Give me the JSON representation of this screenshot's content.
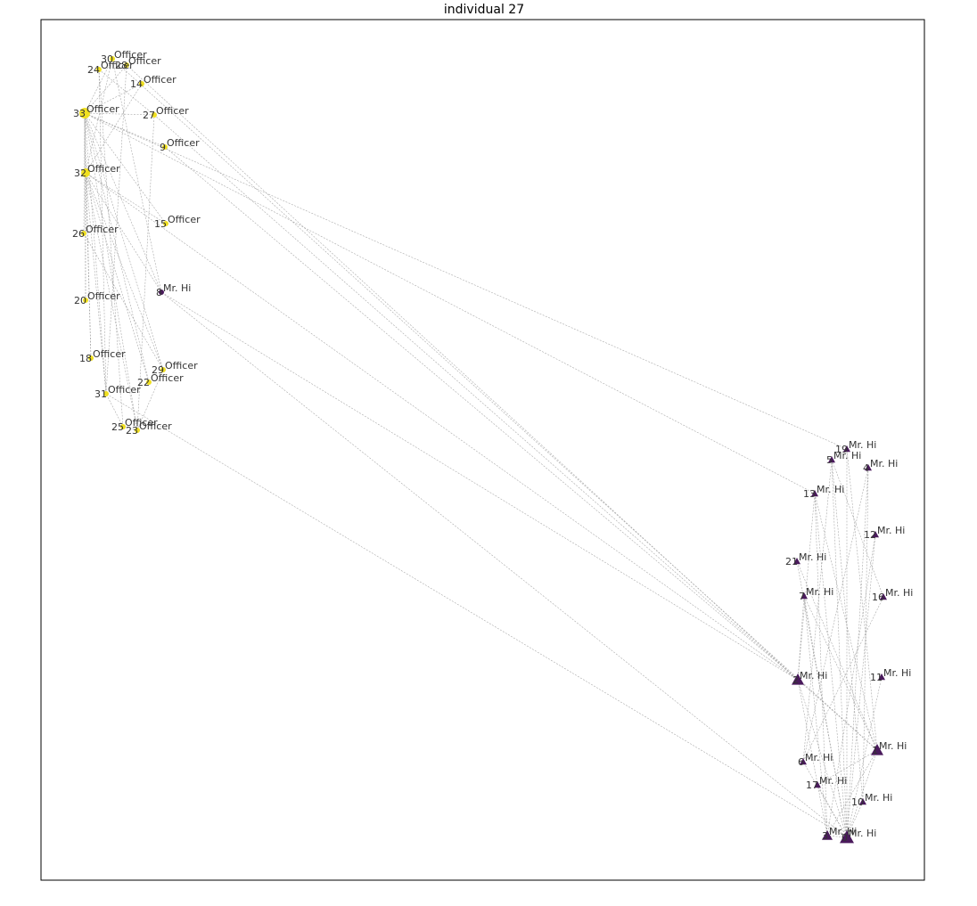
{
  "title": "individual 27",
  "colors": {
    "Officer": "#f0e020",
    "Mr. Hi": "#4a1a5c",
    "edge": "#9a9a9a",
    "frame": "#000000"
  },
  "nodes": [
    {
      "id": 0,
      "label": "Mr. Hi",
      "shape": "triangle"
    },
    {
      "id": 1,
      "label": "Mr. Hi",
      "shape": "triangle"
    },
    {
      "id": 2,
      "label": "Mr. Hi",
      "shape": "triangle"
    },
    {
      "id": 3,
      "label": "Mr. Hi",
      "shape": "triangle"
    },
    {
      "id": 4,
      "label": "Mr. Hi",
      "shape": "triangle"
    },
    {
      "id": 5,
      "label": "Mr. Hi",
      "shape": "triangle"
    },
    {
      "id": 6,
      "label": "Mr. Hi",
      "shape": "triangle"
    },
    {
      "id": 7,
      "label": "Mr. Hi",
      "shape": "triangle"
    },
    {
      "id": 8,
      "label": "Mr. Hi",
      "shape": "circle"
    },
    {
      "id": 9,
      "label": "Officer",
      "shape": "circle"
    },
    {
      "id": 10,
      "label": "Mr. Hi",
      "shape": "triangle"
    },
    {
      "id": 11,
      "label": "Mr. Hi",
      "shape": "triangle"
    },
    {
      "id": 12,
      "label": "Mr. Hi",
      "shape": "triangle"
    },
    {
      "id": 13,
      "label": "Mr. Hi",
      "shape": "triangle"
    },
    {
      "id": 14,
      "label": "Officer",
      "shape": "circle"
    },
    {
      "id": 15,
      "label": "Officer",
      "shape": "circle"
    },
    {
      "id": 16,
      "label": "Mr. Hi",
      "shape": "triangle"
    },
    {
      "id": 17,
      "label": "Mr. Hi",
      "shape": "triangle"
    },
    {
      "id": 18,
      "label": "Officer",
      "shape": "circle"
    },
    {
      "id": 19,
      "label": "Mr. Hi",
      "shape": "triangle"
    },
    {
      "id": 20,
      "label": "Officer",
      "shape": "circle"
    },
    {
      "id": 21,
      "label": "Mr. Hi",
      "shape": "triangle"
    },
    {
      "id": 22,
      "label": "Officer",
      "shape": "circle"
    },
    {
      "id": 23,
      "label": "Officer",
      "shape": "circle"
    },
    {
      "id": 24,
      "label": "Officer",
      "shape": "circle"
    },
    {
      "id": 25,
      "label": "Officer",
      "shape": "circle"
    },
    {
      "id": 26,
      "label": "Officer",
      "shape": "circle"
    },
    {
      "id": 27,
      "label": "Officer",
      "shape": "circle"
    },
    {
      "id": 28,
      "label": "Officer",
      "shape": "circle"
    },
    {
      "id": 29,
      "label": "Officer",
      "shape": "circle"
    },
    {
      "id": 30,
      "label": "Officer",
      "shape": "circle"
    },
    {
      "id": 31,
      "label": "Officer",
      "shape": "circle"
    },
    {
      "id": 32,
      "label": "Officer",
      "shape": "circle"
    },
    {
      "id": 33,
      "label": "Officer",
      "shape": "circle"
    }
  ],
  "edges": [
    [
      0,
      1
    ],
    [
      0,
      2
    ],
    [
      0,
      3
    ],
    [
      0,
      4
    ],
    [
      0,
      5
    ],
    [
      0,
      6
    ],
    [
      0,
      7
    ],
    [
      0,
      8
    ],
    [
      0,
      10
    ],
    [
      0,
      11
    ],
    [
      0,
      12
    ],
    [
      0,
      13
    ],
    [
      0,
      17
    ],
    [
      0,
      19
    ],
    [
      0,
      21
    ],
    [
      0,
      31
    ],
    [
      1,
      2
    ],
    [
      1,
      3
    ],
    [
      1,
      7
    ],
    [
      1,
      13
    ],
    [
      1,
      17
    ],
    [
      1,
      19
    ],
    [
      1,
      21
    ],
    [
      1,
      30
    ],
    [
      2,
      3
    ],
    [
      2,
      7
    ],
    [
      2,
      8
    ],
    [
      2,
      9
    ],
    [
      2,
      13
    ],
    [
      2,
      27
    ],
    [
      2,
      28
    ],
    [
      2,
      32
    ],
    [
      3,
      7
    ],
    [
      3,
      12
    ],
    [
      3,
      13
    ],
    [
      4,
      6
    ],
    [
      4,
      10
    ],
    [
      5,
      6
    ],
    [
      5,
      10
    ],
    [
      5,
      16
    ],
    [
      6,
      16
    ],
    [
      8,
      30
    ],
    [
      8,
      32
    ],
    [
      8,
      33
    ],
    [
      9,
      33
    ],
    [
      13,
      33
    ],
    [
      14,
      32
    ],
    [
      14,
      33
    ],
    [
      15,
      32
    ],
    [
      15,
      33
    ],
    [
      18,
      32
    ],
    [
      18,
      33
    ],
    [
      19,
      33
    ],
    [
      20,
      32
    ],
    [
      20,
      33
    ],
    [
      22,
      32
    ],
    [
      22,
      33
    ],
    [
      23,
      25
    ],
    [
      23,
      27
    ],
    [
      23,
      29
    ],
    [
      23,
      32
    ],
    [
      23,
      33
    ],
    [
      24,
      25
    ],
    [
      24,
      27
    ],
    [
      24,
      31
    ],
    [
      25,
      31
    ],
    [
      26,
      29
    ],
    [
      26,
      33
    ],
    [
      27,
      33
    ],
    [
      28,
      31
    ],
    [
      28,
      33
    ],
    [
      29,
      32
    ],
    [
      29,
      33
    ],
    [
      30,
      32
    ],
    [
      30,
      33
    ],
    [
      31,
      32
    ],
    [
      31,
      33
    ],
    [
      32,
      33
    ]
  ]
}
